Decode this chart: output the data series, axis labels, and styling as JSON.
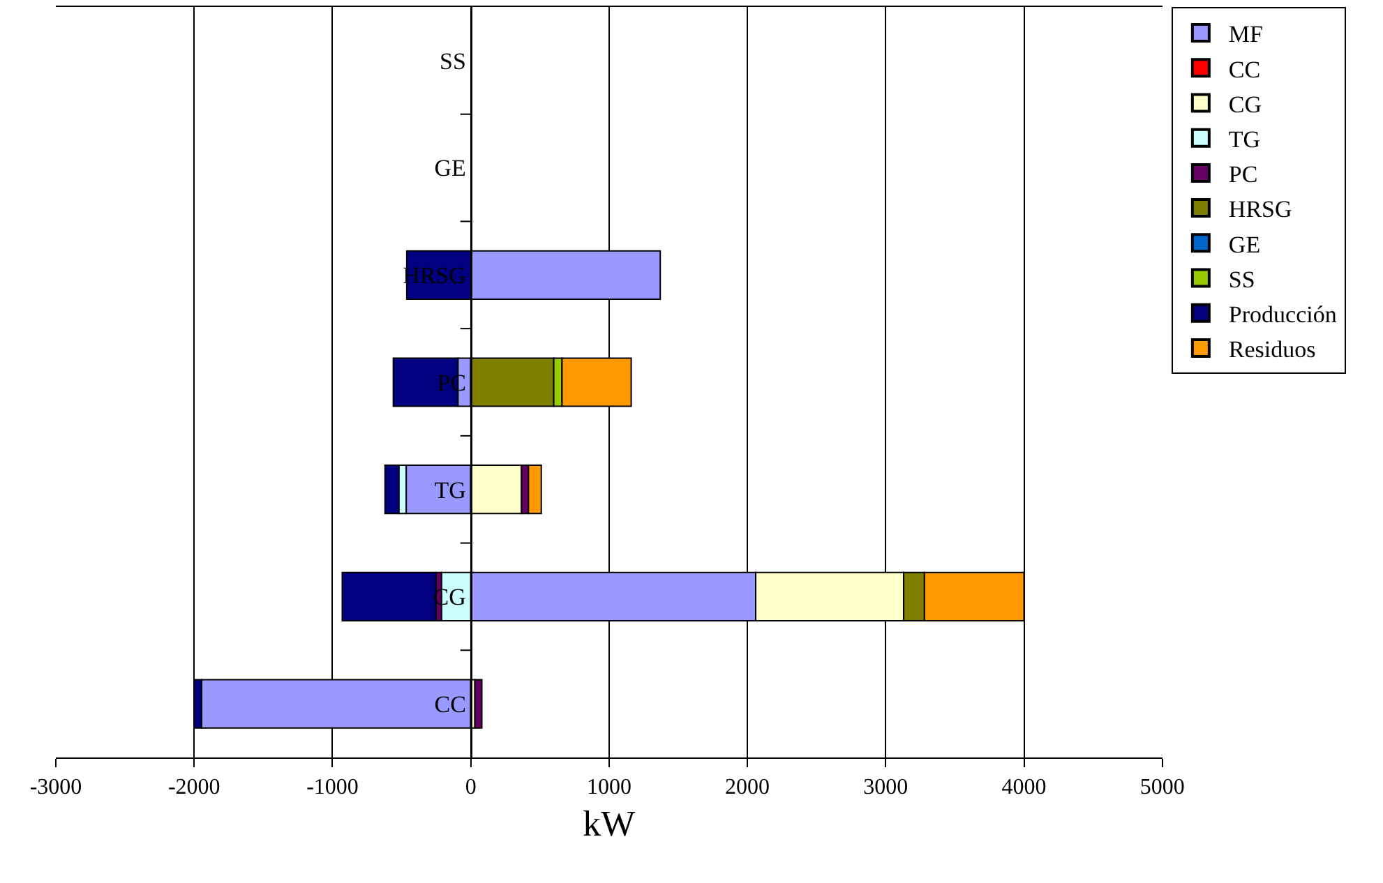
{
  "chart_data": {
    "type": "bar",
    "orientation": "horizontal",
    "stacked": true,
    "xlabel": "kW",
    "categories": [
      "SS",
      "GE",
      "HRSG",
      "PC",
      "TG",
      "CG",
      "CC"
    ],
    "series": [
      {
        "name": "MF",
        "color": "#9999ff",
        "values": [
          null,
          null,
          1370,
          -93,
          -467,
          2060,
          -1947
        ]
      },
      {
        "name": "CC",
        "color": "#ff0000",
        "values": [
          null,
          null,
          null,
          null,
          null,
          null,
          null
        ]
      },
      {
        "name": "CG",
        "color": "#ffffcc",
        "values": [
          null,
          null,
          null,
          null,
          367,
          1070,
          30
        ]
      },
      {
        "name": "TG",
        "color": "#ccffff",
        "values": [
          null,
          null,
          null,
          null,
          -53,
          -212,
          null
        ]
      },
      {
        "name": "PC",
        "color": "#660066",
        "values": [
          null,
          null,
          null,
          null,
          50,
          -40,
          50
        ]
      },
      {
        "name": "HRSG",
        "color": "#808000",
        "values": [
          null,
          null,
          null,
          600,
          null,
          150,
          null
        ]
      },
      {
        "name": "GE",
        "color": "#0066cc",
        "values": [
          null,
          null,
          null,
          null,
          null,
          null,
          null
        ]
      },
      {
        "name": "SS",
        "color": "#99cc00",
        "values": [
          null,
          null,
          null,
          60,
          null,
          null,
          null
        ]
      },
      {
        "name": "Producción",
        "color": "#000080",
        "values": [
          null,
          null,
          -463,
          -467,
          -100,
          -677,
          -53
        ]
      },
      {
        "name": "Residuos",
        "color": "#ff9900",
        "values": [
          null,
          null,
          null,
          500,
          93,
          720,
          null
        ]
      }
    ],
    "xlim": [
      -3000,
      5000
    ],
    "xticks": [
      -3000,
      -2000,
      -1000,
      0,
      1000,
      2000,
      3000,
      4000,
      5000
    ],
    "grid": "x",
    "legend": "right"
  }
}
